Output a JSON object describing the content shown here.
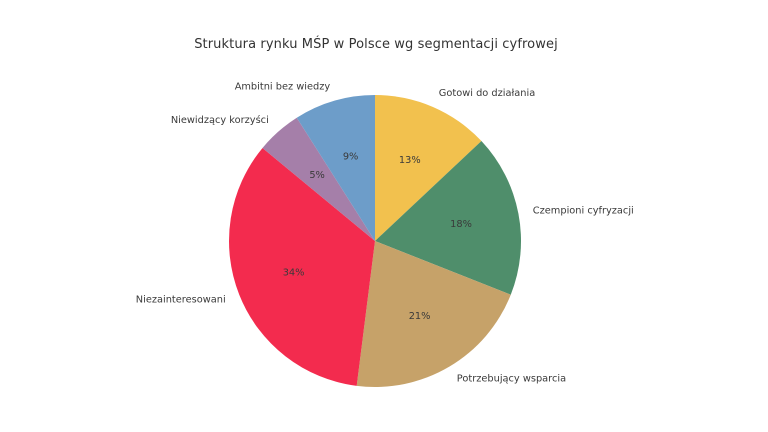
{
  "window": {
    "background_color": "#ffffff",
    "text_color": "#3a3a3a"
  },
  "chart_data": {
    "type": "pie",
    "title": "Struktura rynku MŚP w Polsce wg segmentacji cyfrowej",
    "start_angle_deg": 90,
    "direction": "clockwise",
    "label_radius_ratio": 1.1,
    "pct_radius_ratio": 0.6,
    "total": 100,
    "legend": "none",
    "segments": [
      {
        "label": "Gotowi do działania",
        "value": 13,
        "pct_label": "13%",
        "color": "#f2c14e"
      },
      {
        "label": "Czempioni cyfryzacji",
        "value": 18,
        "pct_label": "18%",
        "color": "#4f8e6b"
      },
      {
        "label": "Potrzebujący wsparcia",
        "value": 21,
        "pct_label": "21%",
        "color": "#c6a269"
      },
      {
        "label": "Niezainteresowani",
        "value": 34,
        "pct_label": "34%",
        "color": "#f32b4e"
      },
      {
        "label": "Niewidzący korzyści",
        "value": 5,
        "pct_label": "5%",
        "color": "#a57fa9"
      },
      {
        "label": "Ambitni bez wiedzy",
        "value": 9,
        "pct_label": "9%",
        "color": "#6d9dc9"
      }
    ]
  }
}
